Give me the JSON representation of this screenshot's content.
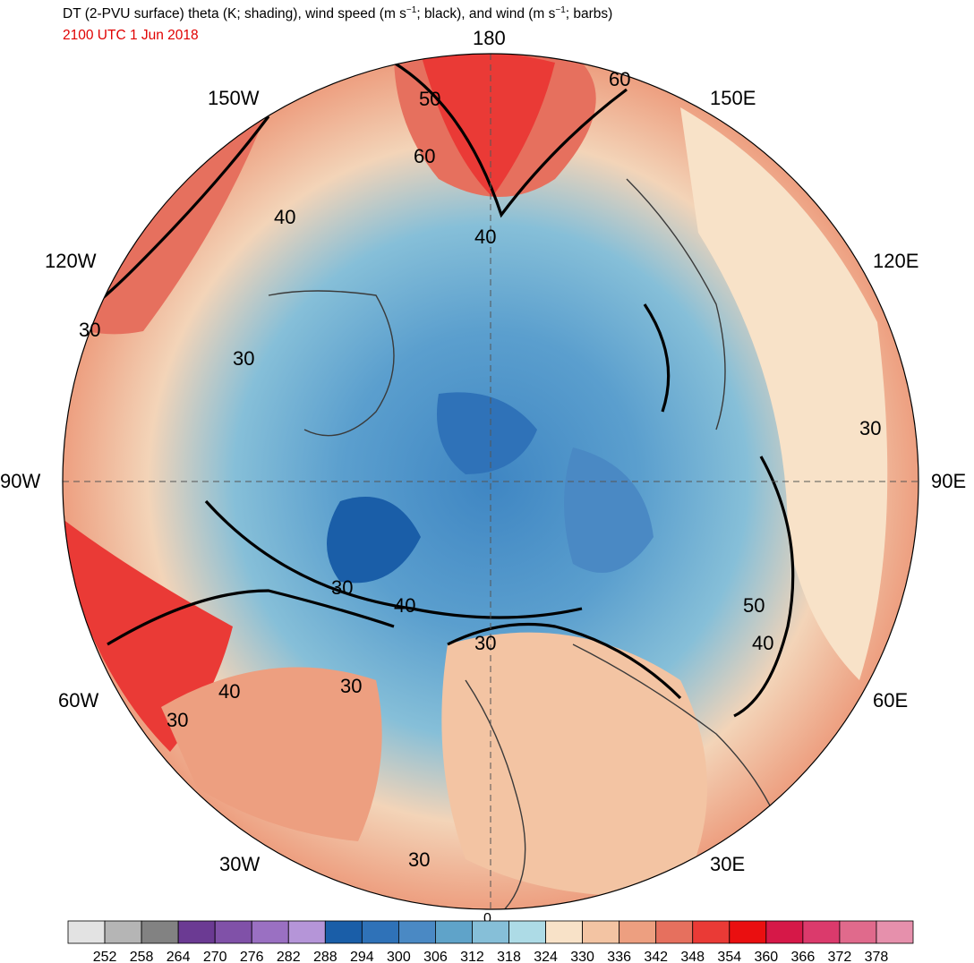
{
  "title": {
    "prefix": "DT (2-PVU surface) theta (K; shading), wind speed (m s",
    "sup1": "−1",
    "middle": "; black), and wind (m s",
    "sup2": "−1",
    "suffix": "; barbs)"
  },
  "valid_time": "2100 UTC 1 Jun 2018",
  "longitude_labels": [
    "180",
    "150E",
    "120E",
    "90E",
    "60E",
    "30E",
    "0",
    "30W",
    "60W",
    "90W",
    "120W",
    "150W"
  ],
  "contour_labels": [
    "30",
    "40",
    "50",
    "60"
  ],
  "colorbar": {
    "labels": [
      "252",
      "258",
      "264",
      "270",
      "276",
      "282",
      "288",
      "294",
      "300",
      "306",
      "312",
      "318",
      "324",
      "330",
      "336",
      "342",
      "348",
      "354",
      "360",
      "366",
      "372",
      "378"
    ],
    "colors": [
      "#e3e3e3",
      "#b5b5b5",
      "#828282",
      "#6b3a93",
      "#8051a8",
      "#9a70c2",
      "#b595d8",
      "#1a5ea8",
      "#2f72b8",
      "#4a89c4",
      "#5fa3c9",
      "#86bfd8",
      "#addbe6",
      "#f8e2c8",
      "#f3c4a3",
      "#ed9f80",
      "#e6705e",
      "#ea3a36",
      "#ea0f10",
      "#d61848",
      "#db3a6c",
      "#e06a8c",
      "#e690ac"
    ]
  },
  "colors": {
    "ocean_land_outline": "#3a3a3a",
    "contour": "#000000",
    "timestamp": "#e00000"
  }
}
